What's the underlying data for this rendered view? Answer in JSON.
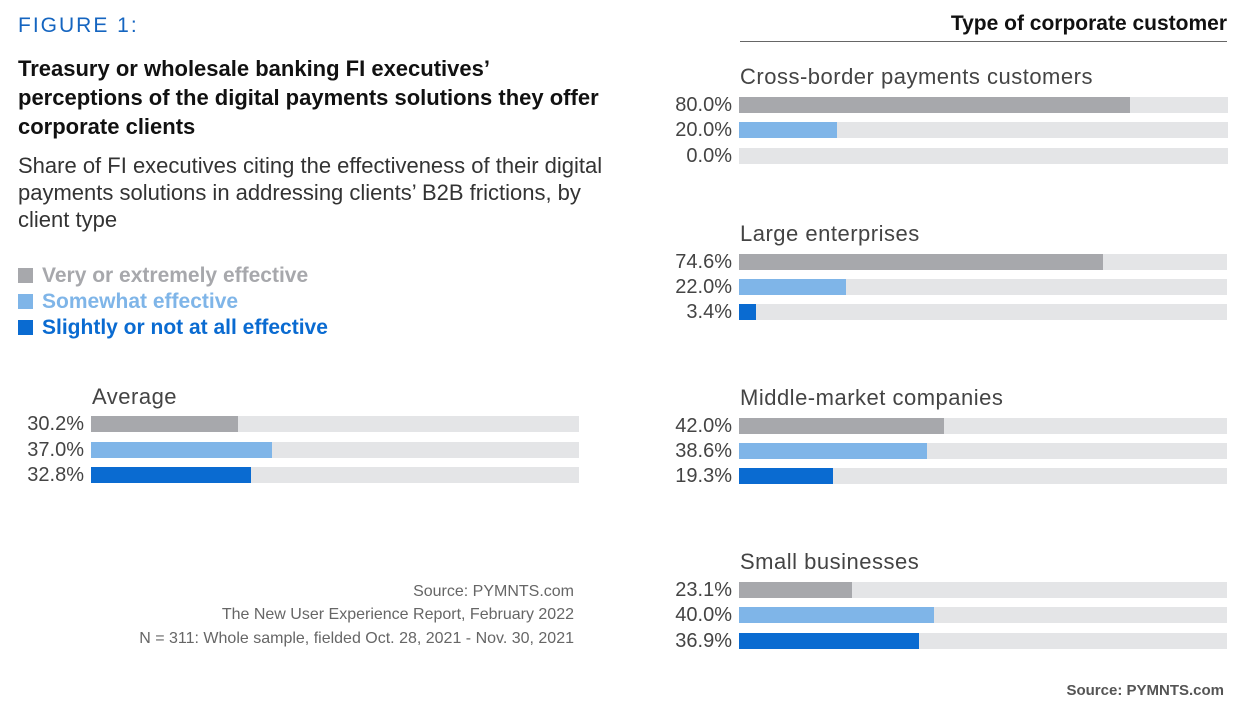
{
  "figure_label": "FIGURE 1:",
  "title": "Treasury or wholesale banking FI executives’ perceptions of the digital payments solutions they offer corporate clients",
  "subtitle": "Share of FI executives citing the effectiveness of their digital payments solutions in addressing clients’ B2B frictions, by client type",
  "colors": {
    "very": "#a7a8ac",
    "somewhat": "#7fb5e8",
    "slightly": "#0a6bd1",
    "track": "#e4e5e7"
  },
  "legend": [
    {
      "label": "Very or extremely effective",
      "color": "#a7a8ac"
    },
    {
      "label": "Somewhat effective",
      "color": "#7fb5e8"
    },
    {
      "label": "Slightly or not at all effective",
      "color": "#0a6bd1"
    }
  ],
  "right_header": "Type of corporate customer",
  "sources": {
    "line1": "Source: PYMNTS.com",
    "line2": "The New User Experience Report, February 2022",
    "line3": "N = 311: Whole sample, fielded  Oct. 28, 2021 - Nov. 30, 2021",
    "footer": "Source: PYMNTS.com"
  },
  "chart_data": {
    "type": "bar",
    "orientation": "horizontal",
    "unit": "%",
    "xlim": [
      0,
      100
    ],
    "series_names": [
      "Very or extremely effective",
      "Somewhat effective",
      "Slightly or not at all effective"
    ],
    "groups": [
      {
        "name": "Average",
        "values": [
          30.2,
          37.0,
          32.8
        ],
        "labels": [
          "30.2%",
          "37.0%",
          "32.8%"
        ]
      },
      {
        "name": "Cross-border payments customers",
        "values": [
          80.0,
          20.0,
          0.0
        ],
        "labels": [
          "80.0%",
          "20.0%",
          "0.0%"
        ]
      },
      {
        "name": "Large enterprises",
        "values": [
          74.6,
          22.0,
          3.4
        ],
        "labels": [
          "74.6%",
          "22.0%",
          "3.4%"
        ]
      },
      {
        "name": "Middle-market companies",
        "values": [
          42.0,
          38.6,
          19.3
        ],
        "labels": [
          "42.0%",
          "38.6%",
          "19.3%"
        ]
      },
      {
        "name": "Small businesses",
        "values": [
          23.1,
          40.0,
          36.9
        ],
        "labels": [
          "23.1%",
          "40.0%",
          "36.9%"
        ]
      }
    ]
  }
}
